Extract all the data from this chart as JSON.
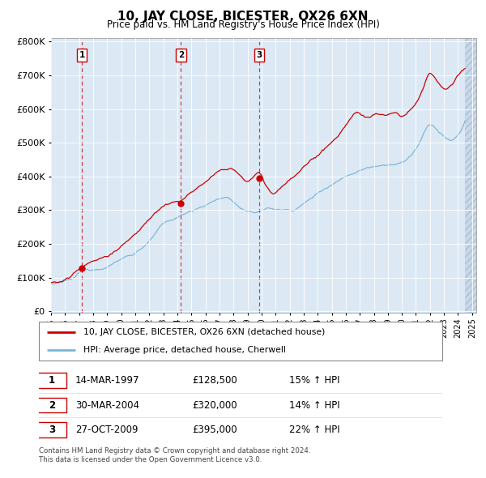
{
  "title": "10, JAY CLOSE, BICESTER, OX26 6XN",
  "subtitle": "Price paid vs. HM Land Registry's House Price Index (HPI)",
  "legend_line1": "10, JAY CLOSE, BICESTER, OX26 6XN (detached house)",
  "legend_line2": "HPI: Average price, detached house, Cherwell",
  "transactions": [
    {
      "num": 1,
      "date": "14-MAR-1997",
      "year": 1997.2,
      "price": 128500,
      "pct": "15%",
      "dir": "↑"
    },
    {
      "num": 2,
      "date": "30-MAR-2004",
      "year": 2004.25,
      "price": 320000,
      "pct": "14%",
      "dir": "↑"
    },
    {
      "num": 3,
      "date": "27-OCT-2009",
      "year": 2009.82,
      "price": 395000,
      "pct": "22%",
      "dir": "↑"
    }
  ],
  "footnote1": "Contains HM Land Registry data © Crown copyright and database right 2024.",
  "footnote2": "This data is licensed under the Open Government Licence v3.0.",
  "hpi_color": "#7ab4d8",
  "price_color": "#cc0000",
  "plot_bg": "#dce9f5",
  "ylim_max": 800000,
  "xlim_start": 1995.0,
  "xlim_end": 2025.3,
  "yticks": [
    0,
    100000,
    200000,
    300000,
    400000,
    500000,
    600000,
    700000,
    800000
  ]
}
